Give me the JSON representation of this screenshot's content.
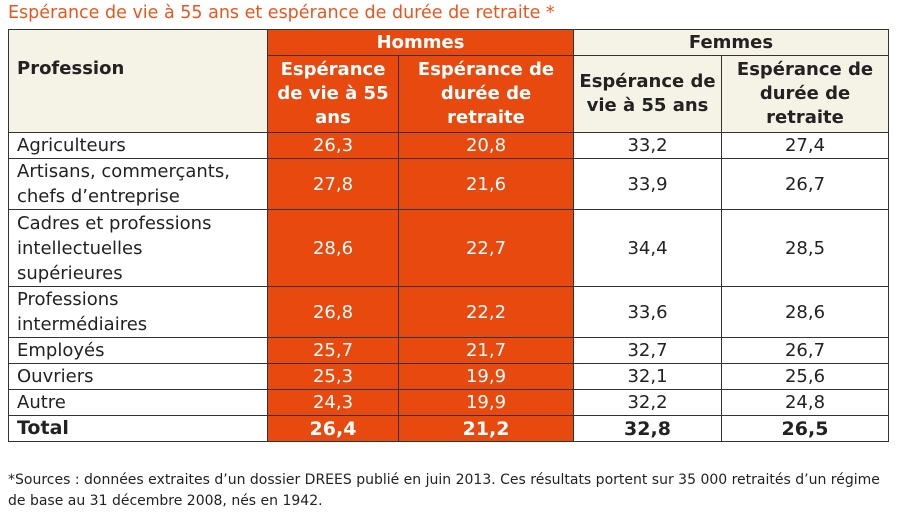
{
  "title": "Espérance de vie à 55 ans et espérance de durée de retraite *",
  "table": {
    "profession_header": "Profession",
    "group_hommes": "Hommes",
    "group_femmes": "Femmes",
    "sub_vie_hommes_lines": [
      "Espérance",
      "de vie à 55",
      "ans"
    ],
    "sub_retraite_hommes_lines": [
      "Espérance de",
      "durée de",
      "retraite"
    ],
    "sub_vie_femmes_lines": [
      "Espérance de",
      "vie à 55 ans"
    ],
    "sub_retraite_femmes_lines": [
      "Espérance de",
      "durée de",
      "retraite"
    ],
    "rows": [
      {
        "lines": [
          "Agriculteurs"
        ],
        "h_vie": "26,3",
        "h_retraite": "20,8",
        "f_vie": "33,2",
        "f_retraite": "27,4"
      },
      {
        "lines": [
          "Artisans, commerçants,",
          "chefs d’entreprise"
        ],
        "h_vie": "27,8",
        "h_retraite": "21,6",
        "f_vie": "33,9",
        "f_retraite": "26,7"
      },
      {
        "lines": [
          "Cadres et professions",
          "intellectuelles",
          "supérieures"
        ],
        "h_vie": "28,6",
        "h_retraite": "22,7",
        "f_vie": "34,4",
        "f_retraite": "28,5"
      },
      {
        "lines": [
          "Professions",
          "intermédiaires"
        ],
        "h_vie": "26,8",
        "h_retraite": "22,2",
        "f_vie": "33,6",
        "f_retraite": "28,6"
      },
      {
        "lines": [
          "Employés"
        ],
        "h_vie": "25,7",
        "h_retraite": "21,7",
        "f_vie": "32,7",
        "f_retraite": "26,7"
      },
      {
        "lines": [
          "Ouvriers"
        ],
        "h_vie": "25,3",
        "h_retraite": "19,9",
        "f_vie": "32,1",
        "f_retraite": "25,6"
      },
      {
        "lines": [
          "Autre"
        ],
        "h_vie": "24,3",
        "h_retraite": "19,9",
        "f_vie": "32,2",
        "f_retraite": "24,8"
      }
    ],
    "total": {
      "label": "Total",
      "h_vie": "26,4",
      "h_retraite": "21,2",
      "f_vie": "32,8",
      "f_retraite": "26,5"
    }
  },
  "footnote_lines": [
    "*Sources : données extraites d’un dossier DREES publié en juin 2013. Ces résultats portent sur 35 000 retraités d’un régime",
    "de base au 31 décembre 2008, nés en 1942."
  ],
  "colors": {
    "title": "#e8561f",
    "hommes_fill": "#e8490f",
    "header_beige": "#f5f2e6",
    "border": "#333333"
  }
}
